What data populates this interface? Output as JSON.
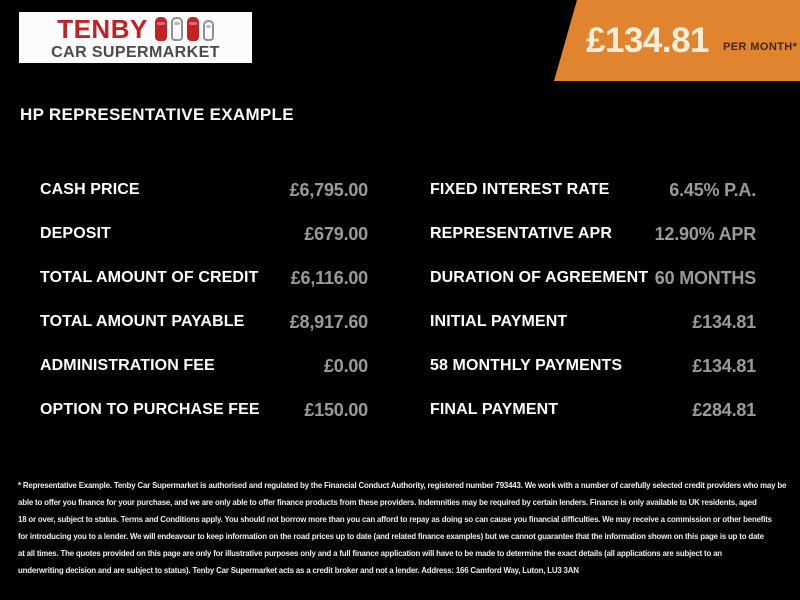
{
  "brand": {
    "name": "TENBY",
    "subtitle": "CAR SUPERMARKET"
  },
  "price_banner": {
    "amount": "£134.81",
    "period": "PER MONTH*"
  },
  "heading": "HP REPRESENTATIVE EXAMPLE",
  "finance": {
    "left": [
      {
        "label": "CASH PRICE",
        "value": "£6,795.00"
      },
      {
        "label": "DEPOSIT",
        "value": "£679.00"
      },
      {
        "label": "TOTAL AMOUNT OF CREDIT",
        "value": "£6,116.00"
      },
      {
        "label": "TOTAL AMOUNT PAYABLE",
        "value": "£8,917.60"
      },
      {
        "label": "ADMINISTRATION FEE",
        "value": "£0.00"
      },
      {
        "label": "OPTION TO PURCHASE FEE",
        "value": "£150.00"
      }
    ],
    "right": [
      {
        "label": "FIXED INTEREST RATE",
        "value": "6.45% P.A."
      },
      {
        "label": "REPRESENTATIVE APR",
        "value": "12.90% APR"
      },
      {
        "label": "DURATION OF AGREEMENT",
        "value": "60 MONTHS"
      },
      {
        "label": "INITIAL PAYMENT",
        "value": "£134.81"
      },
      {
        "label": "58 MONTHLY PAYMENTS",
        "value": "£134.81"
      },
      {
        "label": "FINAL PAYMENT",
        "value": "£284.81"
      }
    ]
  },
  "disclaimer": {
    "lines": [
      "* Representative Example. Tenby Car Supermarket is authorised and regulated by the Financial Conduct Authority, registered number 793443. We work with a number of carefully selected credit providers who may be",
      "able to offer you finance for your purchase, and we are only able to offer finance products from these providers. Indemnities may be required by certain lenders. Finance is only available to UK residents, aged",
      "18 or over, subject to status. Terms and Conditions apply. You should not borrow more than you can afford to repay as doing so can cause you financial difficulties. We may receive a commission or other benefits",
      "for introducing you to a lender. We will endeavour to keep information on the road prices up to date (and related finance examples) but we cannot guarantee that the information shown on this page is up to date",
      "at all times. The quotes provided on this page are only for illustrative purposes only and a full finance application will have to be made to determine the exact details (all applications are subject to an",
      "underwriting decision and are subject to status). Tenby Car Supermarket acts as a credit broker and not a lender. Address: 166 Camford Way, Luton, LU3 3AN"
    ]
  },
  "icons": {
    "logo_cars": "car-top-view-icon"
  },
  "colors": {
    "background": "#010101",
    "accent_orange": "#e0842f",
    "brand_red": "#c42127",
    "brand_gray": "#4a4a4c",
    "value_gray": "#9a9a9a",
    "banner_amount_cream": "#f6efdc",
    "banner_period_brown": "#42290f",
    "label_white": "#ffffff"
  }
}
